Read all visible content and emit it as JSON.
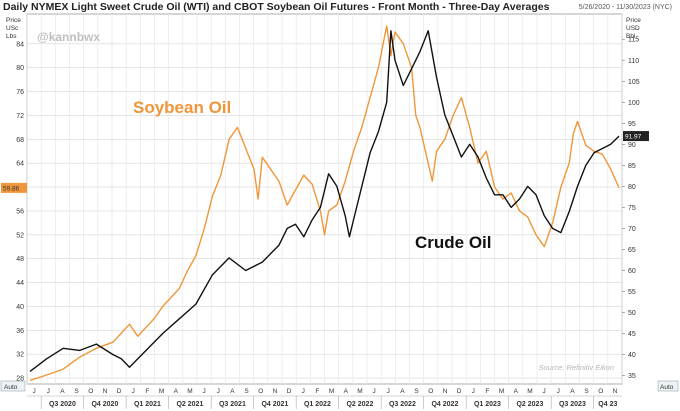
{
  "header": {
    "title": "Daily NYMEX Light Sweet Crude Oil (WTI) and CBOT Soybean Oil Futures - Front Month - Three-Day Averages",
    "date_range": "5/26/2020 - 11/30/2023 (NYC)"
  },
  "watermark": "@kannbwx",
  "source": "Source: Refinitiv Eikon",
  "chart_data": {
    "type": "line",
    "left_axis": {
      "label_lines": [
        "Price",
        "USc",
        "Lbs"
      ],
      "ticks": [
        28,
        32,
        36,
        40,
        44,
        48,
        52,
        56,
        60,
        64,
        68,
        72,
        76,
        80,
        84
      ],
      "range": [
        27,
        89
      ]
    },
    "right_axis": {
      "label_lines": [
        "Price",
        "USD",
        "Bbl"
      ],
      "ticks": [
        35,
        40,
        45,
        50,
        55,
        60,
        65,
        70,
        75,
        80,
        85,
        90,
        95,
        100,
        105,
        110,
        115
      ],
      "range": [
        33,
        121
      ]
    },
    "month_labels": [
      "J",
      "J",
      "A",
      "S",
      "O",
      "N",
      "D",
      "J",
      "F",
      "M",
      "A",
      "M",
      "J",
      "J",
      "A",
      "S",
      "O",
      "N",
      "D",
      "J",
      "F",
      "M",
      "A",
      "M",
      "J",
      "J",
      "A",
      "S",
      "O",
      "N",
      "D",
      "J",
      "F",
      "M",
      "A",
      "M",
      "J",
      "J",
      "A",
      "S",
      "O",
      "N"
    ],
    "quarter_labels": [
      "Q3 2020",
      "Q4 2020",
      "Q1 2021",
      "Q2 2021",
      "Q3 2021",
      "Q4 2021",
      "Q1 2022",
      "Q2 2022",
      "Q3 2022",
      "Q4 2022",
      "Q1 2023",
      "Q2 2023",
      "Q3 2023",
      "Q4 23"
    ],
    "auto_labels": [
      "Auto",
      "Auto"
    ],
    "series": [
      {
        "name": "Soybean Oil",
        "axis": "left",
        "color": "#f0963a",
        "last_value_label": "59.86",
        "values": [
          [
            0,
            27.6
          ],
          [
            2,
            28.5
          ],
          [
            4,
            29.5
          ],
          [
            6,
            31.5
          ],
          [
            8,
            33.0
          ],
          [
            10,
            34.0
          ],
          [
            12,
            37.0
          ],
          [
            13,
            35.0
          ],
          [
            14,
            36.5
          ],
          [
            15,
            38.0
          ],
          [
            16,
            40.0
          ],
          [
            17,
            41.5
          ],
          [
            18,
            43.0
          ],
          [
            19,
            46.0
          ],
          [
            20,
            48.5
          ],
          [
            21,
            53.0
          ],
          [
            22,
            58.5
          ],
          [
            23,
            62.0
          ],
          [
            24,
            68.0
          ],
          [
            25,
            70.0
          ],
          [
            26,
            66.5
          ],
          [
            27,
            63.0
          ],
          [
            27.5,
            58.0
          ],
          [
            28,
            65.0
          ],
          [
            29,
            63.0
          ],
          [
            30,
            61.0
          ],
          [
            31,
            57.0
          ],
          [
            32,
            59.5
          ],
          [
            33,
            62.0
          ],
          [
            34,
            60.5
          ],
          [
            35,
            56.0
          ],
          [
            35.5,
            52.0
          ],
          [
            36,
            56.0
          ],
          [
            37,
            57.0
          ],
          [
            38,
            61.0
          ],
          [
            39,
            66.0
          ],
          [
            40,
            70.0
          ],
          [
            41,
            75.0
          ],
          [
            42,
            80.0
          ],
          [
            43,
            87.0
          ],
          [
            43.5,
            82.0
          ],
          [
            44,
            86.0
          ],
          [
            45,
            84.0
          ],
          [
            46,
            80.0
          ],
          [
            46.5,
            72.0
          ],
          [
            47,
            70.0
          ],
          [
            48,
            64.0
          ],
          [
            48.5,
            61.0
          ],
          [
            49,
            66.0
          ],
          [
            50,
            68.0
          ],
          [
            51,
            72.0
          ],
          [
            52,
            75.0
          ],
          [
            53,
            70.0
          ],
          [
            54,
            64.0
          ],
          [
            55,
            66.0
          ],
          [
            56,
            60.0
          ],
          [
            57,
            58.0
          ],
          [
            58,
            59.0
          ],
          [
            59,
            56.0
          ],
          [
            60,
            55.0
          ],
          [
            61,
            52.0
          ],
          [
            62,
            50.0
          ],
          [
            63,
            54.0
          ],
          [
            64,
            60.0
          ],
          [
            65,
            64.0
          ],
          [
            65.5,
            69.0
          ],
          [
            66,
            71.0
          ],
          [
            67,
            67.0
          ],
          [
            68,
            66.0
          ],
          [
            69,
            65.5
          ],
          [
            70,
            63.0
          ],
          [
            71,
            59.86
          ]
        ]
      },
      {
        "name": "Crude Oil",
        "axis": "right",
        "color": "#111111",
        "last_value_label": "91.97",
        "values": [
          [
            0,
            36.0
          ],
          [
            2,
            39.0
          ],
          [
            4,
            41.5
          ],
          [
            6,
            41.0
          ],
          [
            8,
            42.5
          ],
          [
            10,
            40.0
          ],
          [
            11,
            39.0
          ],
          [
            12,
            37.0
          ],
          [
            13,
            39.0
          ],
          [
            14,
            41.0
          ],
          [
            16,
            45.0
          ],
          [
            18,
            48.5
          ],
          [
            20,
            52.0
          ],
          [
            22,
            59.0
          ],
          [
            24,
            63.0
          ],
          [
            26,
            60.0
          ],
          [
            28,
            62.0
          ],
          [
            30,
            66.0
          ],
          [
            31,
            70.0
          ],
          [
            32,
            71.0
          ],
          [
            33,
            68.0
          ],
          [
            34,
            72.0
          ],
          [
            35,
            75.0
          ],
          [
            36,
            83.0
          ],
          [
            37,
            80.0
          ],
          [
            38,
            73.0
          ],
          [
            38.5,
            68.0
          ],
          [
            39,
            72.0
          ],
          [
            40,
            80.0
          ],
          [
            41,
            88.0
          ],
          [
            42,
            93.0
          ],
          [
            43,
            100.0
          ],
          [
            43.5,
            117.0
          ],
          [
            44,
            110.0
          ],
          [
            45,
            104.0
          ],
          [
            46,
            108.0
          ],
          [
            47,
            112.0
          ],
          [
            48,
            117.0
          ],
          [
            49,
            106.0
          ],
          [
            50,
            97.0
          ],
          [
            51,
            92.0
          ],
          [
            52,
            87.0
          ],
          [
            53,
            90.0
          ],
          [
            54,
            87.0
          ],
          [
            55,
            82.0
          ],
          [
            56,
            78.0
          ],
          [
            57,
            78.0
          ],
          [
            58,
            75.0
          ],
          [
            59,
            77.0
          ],
          [
            60,
            80.0
          ],
          [
            61,
            78.0
          ],
          [
            62,
            73.0
          ],
          [
            63,
            70.0
          ],
          [
            64,
            69.0
          ],
          [
            65,
            74.0
          ],
          [
            66,
            80.0
          ],
          [
            67,
            85.0
          ],
          [
            68,
            88.0
          ],
          [
            69,
            89.0
          ],
          [
            70,
            90.0
          ],
          [
            71,
            91.97
          ]
        ]
      }
    ],
    "legend_labels": [
      "Soybean Oil",
      "Crude Oil"
    ],
    "grid": true
  }
}
